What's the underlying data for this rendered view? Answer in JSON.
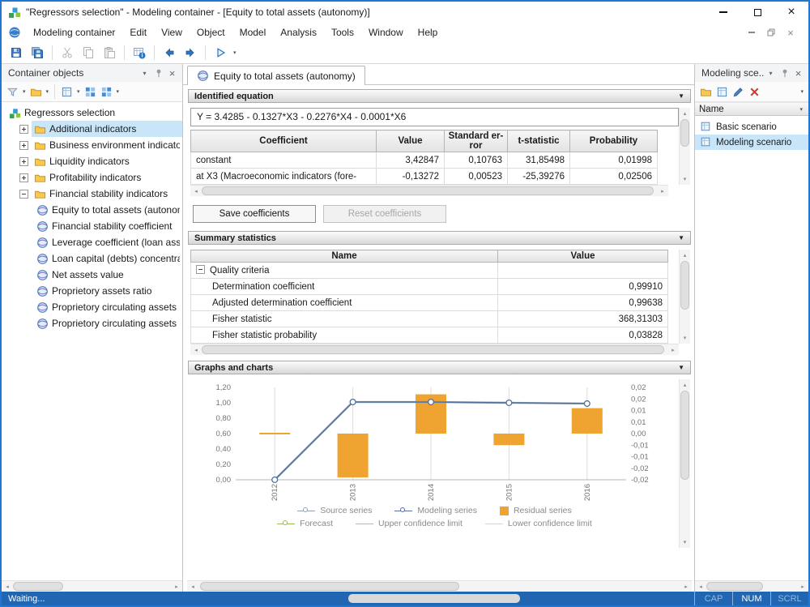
{
  "window": {
    "title": "\"Regressors selection\" - Modeling container - [Equity to total assets (autonomy)]"
  },
  "menu_bar": {
    "items": [
      "Modeling container",
      "Edit",
      "View",
      "Object",
      "Model",
      "Analysis",
      "Tools",
      "Window",
      "Help"
    ]
  },
  "left_panel": {
    "title": "Container objects",
    "tree_root": "Regressors selection",
    "folders": [
      {
        "label": "Additional indicators",
        "state": "collapsed",
        "selected": true
      },
      {
        "label": "Business environment indicators",
        "state": "collapsed",
        "selected": false
      },
      {
        "label": "Liquidity indicators",
        "state": "collapsed",
        "selected": false
      },
      {
        "label": "Profitability indicators",
        "state": "collapsed",
        "selected": false
      },
      {
        "label": "Financial stability indicators",
        "state": "expanded",
        "selected": false
      }
    ],
    "leaves": [
      "Equity to total assets (autonomy)",
      "Financial stability coefficient",
      "Leverage coefficient (loan assets)",
      "Loan capital (debts) concentration",
      "Net assets value",
      "Proprietory assets ratio",
      "Proprietory circulating assets",
      "Proprietory circulating assets"
    ]
  },
  "main": {
    "tab": {
      "label": "Equity to total assets (autonomy)"
    },
    "equation_section": {
      "title": "Identified equation",
      "equation": "Y = 3.4285 - 0.1327*X3 - 0.2276*X4 - 0.0001*X6",
      "table": {
        "headers": [
          "Coefficient",
          "Value",
          "Standard er-ror",
          "t-statistic",
          "Probability"
        ],
        "rows": [
          {
            "cells": [
              "constant",
              "3,42847",
              "0,10763",
              "31,85498",
              "0,01998"
            ]
          },
          {
            "cells": [
              "at X3 (Macroeconomic indicators (fore-",
              "-0,13272",
              "0,00523",
              "-25,39276",
              "0,02506"
            ]
          }
        ]
      },
      "save_button": "Save coefficients",
      "reset_button": "Reset coefficients"
    },
    "summary_section": {
      "title": "Summary statistics",
      "headers": [
        "Name",
        "Value"
      ],
      "group_label": "Quality criteria",
      "rows": [
        {
          "name": "Determination coefficient",
          "value": "0,99910"
        },
        {
          "name": "Adjusted determination coefficient",
          "value": "0,99638"
        },
        {
          "name": "Fisher statistic",
          "value": "368,31303"
        },
        {
          "name": "Fisher statistic probability",
          "value": "0,03828"
        }
      ]
    },
    "charts_section": {
      "title": "Graphs and charts"
    }
  },
  "chart_data": {
    "type": "line",
    "combo": [
      "line",
      "bar"
    ],
    "x": [
      "2012",
      "2013",
      "2014",
      "2015",
      "2016"
    ],
    "left_axis": {
      "min": 0,
      "max": 1.2,
      "ticks": [
        "1,20",
        "1,00",
        "0,80",
        "0,60",
        "0,40",
        "0,20",
        "0,00"
      ]
    },
    "right_axis": {
      "min": -0.02,
      "max": 0.02,
      "ticks": [
        "0,02",
        "0,02",
        "0,01",
        "0,01",
        "0,00",
        "-0,01",
        "-0,01",
        "-0,02",
        "-0,02"
      ]
    },
    "grid": "vertical",
    "legend_position": "bottom",
    "series": [
      {
        "name": "Source series",
        "type": "line",
        "axis": "left",
        "color": "#8fa3b5",
        "values": [
          0.0,
          1.01,
          1.01,
          1.0,
          0.99
        ]
      },
      {
        "name": "Modeling series",
        "type": "line",
        "axis": "left",
        "color": "#51719c",
        "values": [
          0.0,
          1.01,
          1.01,
          1.0,
          0.99
        ]
      },
      {
        "name": "Residual series",
        "type": "bar",
        "axis": "right",
        "color": "#efa331",
        "values": [
          0.0004,
          -0.019,
          0.017,
          -0.005,
          0.011
        ]
      },
      {
        "name": "Forecast",
        "type": "line",
        "axis": "left",
        "color": "#9bbb59",
        "values": []
      },
      {
        "name": "Upper confidence limit",
        "type": "line",
        "axis": "left",
        "color": "#b5b5b5",
        "values": []
      },
      {
        "name": "Lower confidence limit",
        "type": "line",
        "axis": "left",
        "color": "#d3d3d3",
        "values": []
      }
    ]
  },
  "right_panel": {
    "title": "Modeling sce...",
    "column_header": "Name",
    "items": [
      {
        "label": "Basic scenario",
        "selected": false
      },
      {
        "label": "Modeling scenario",
        "selected": true
      }
    ]
  },
  "status_bar": {
    "message": "Waiting...",
    "indicators": [
      {
        "label": "CAP",
        "active": false
      },
      {
        "label": "NUM",
        "active": true
      },
      {
        "label": "SCRL",
        "active": false
      }
    ]
  },
  "icons": {
    "collapse": "▼",
    "dropdown": "▾",
    "scroll_left": "◂",
    "scroll_right": "▸",
    "scroll_up": "▴",
    "scroll_down": "▾"
  }
}
